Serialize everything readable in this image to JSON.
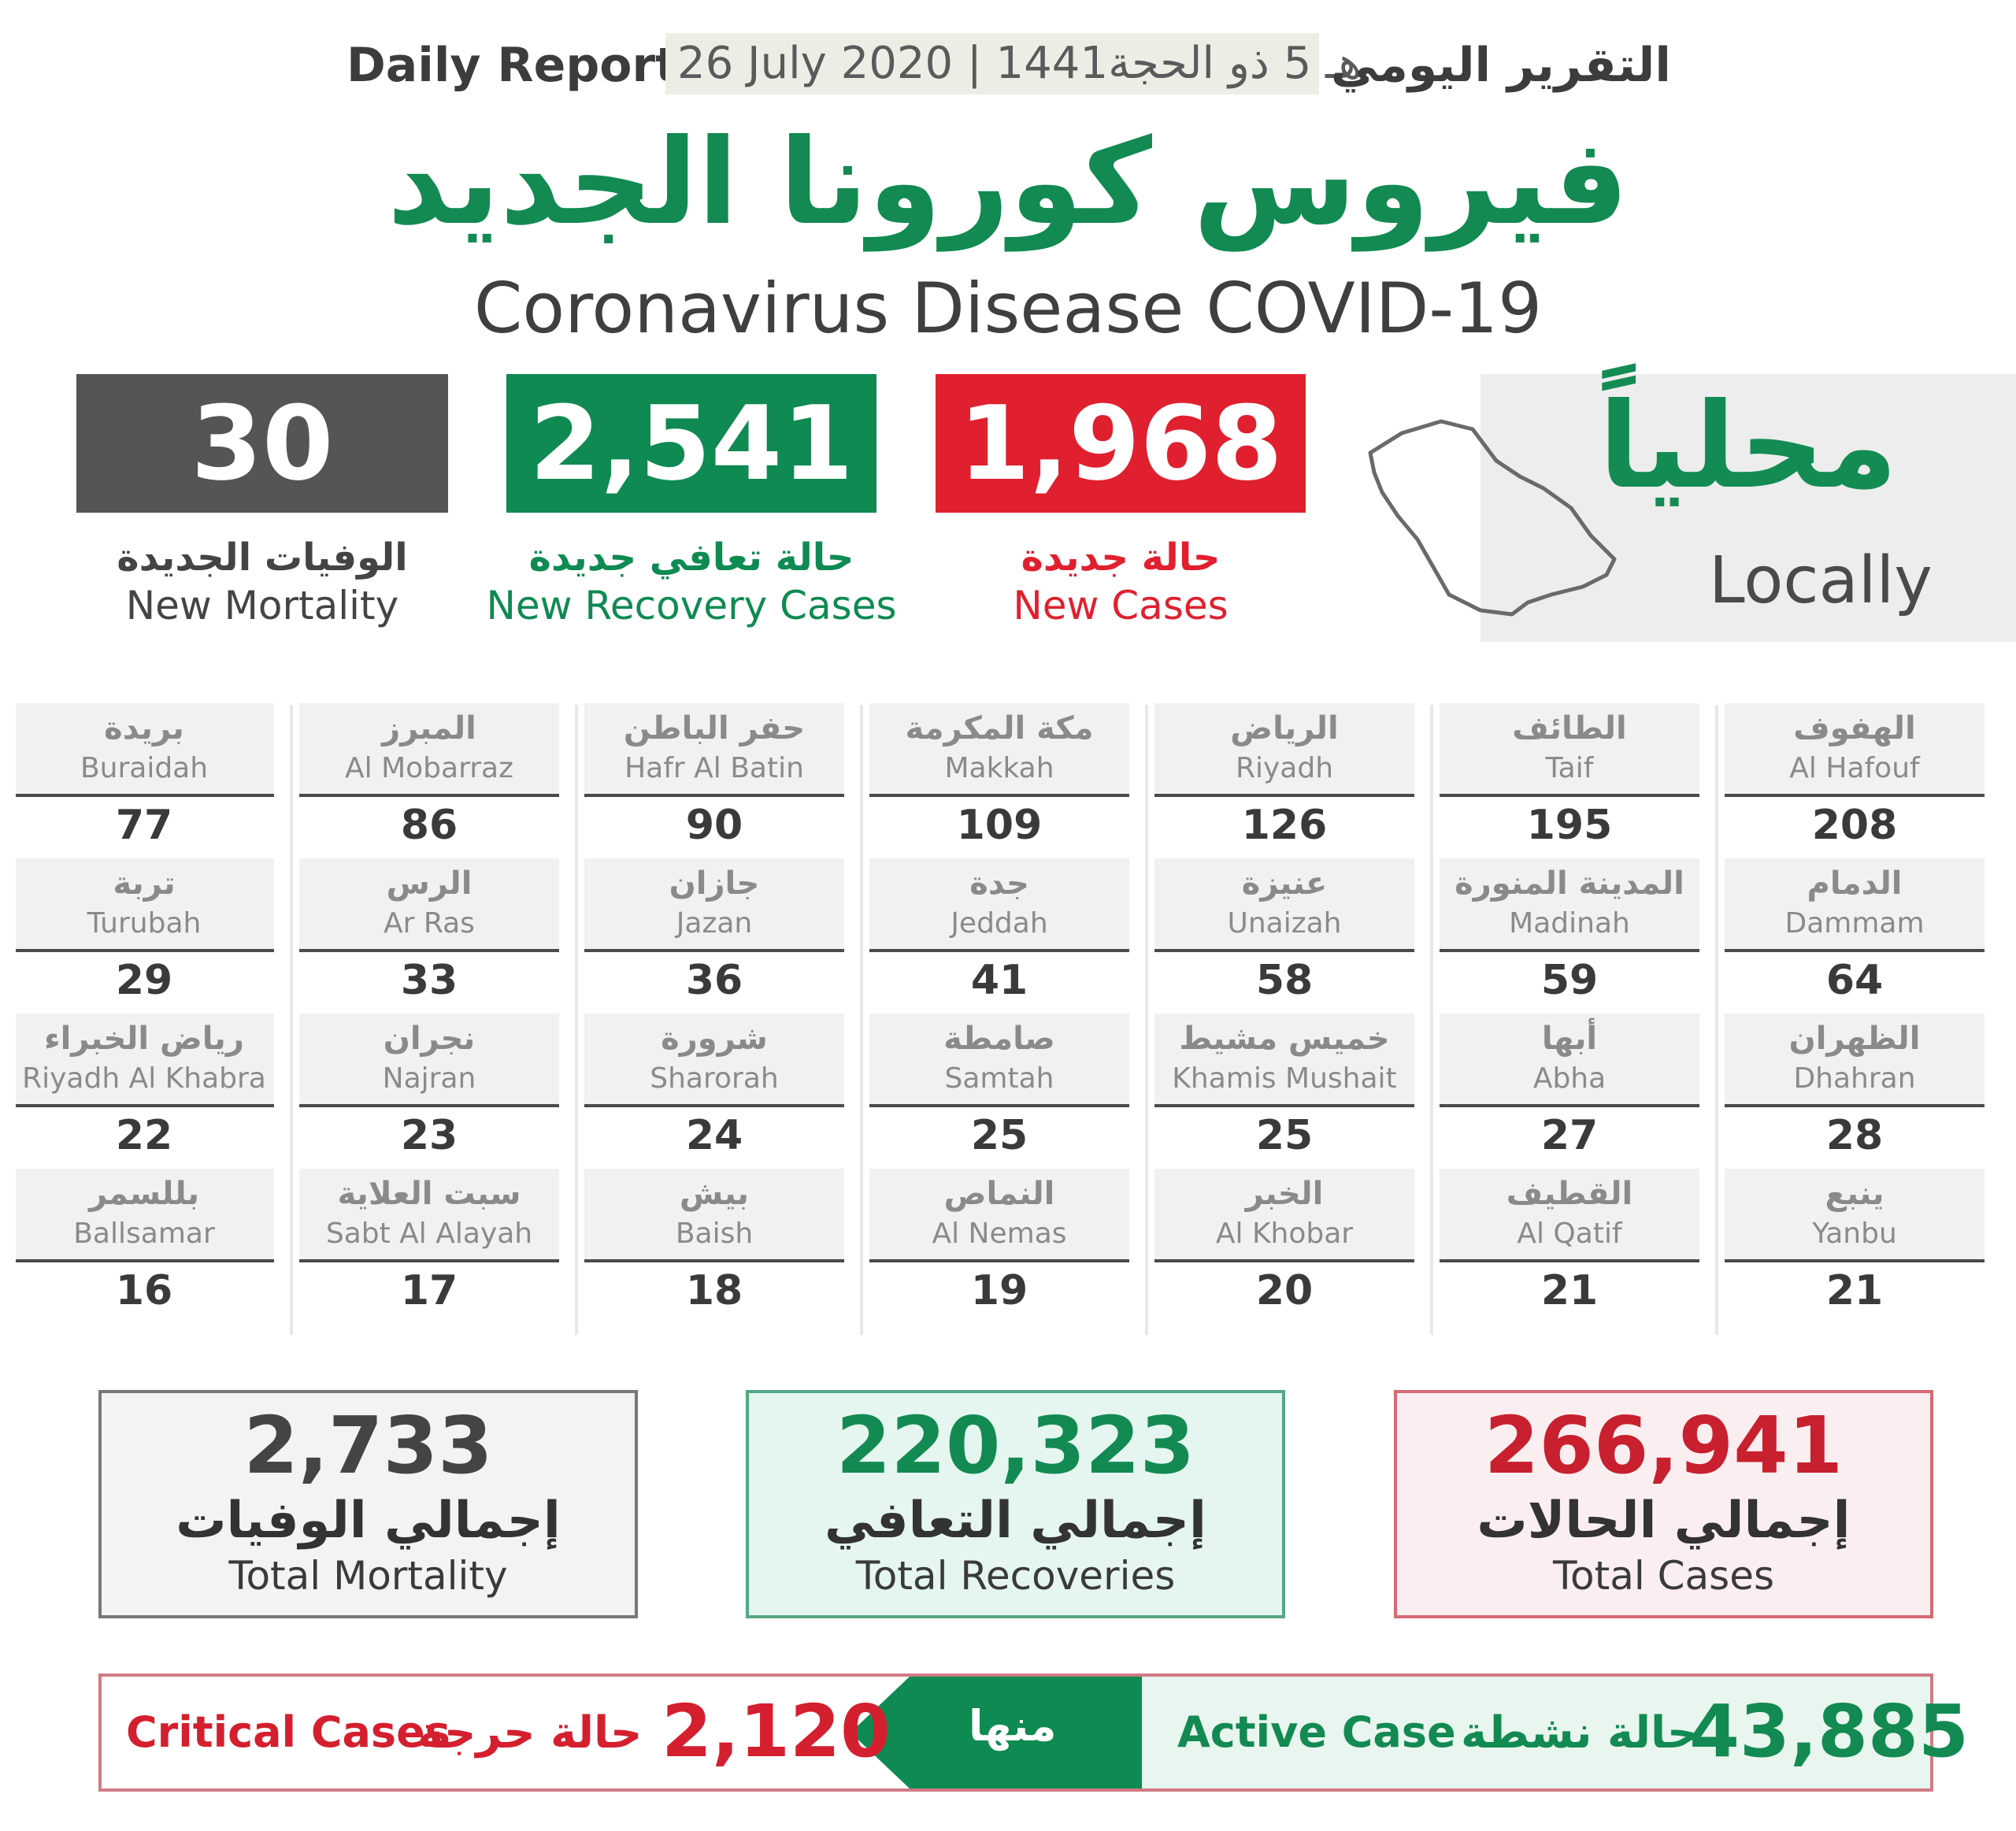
{
  "header": {
    "title_en": "Daily Report",
    "date": "26 July 2020 | 1441هـ 5 ذو الحجة",
    "title_ar": "التقرير اليومي"
  },
  "title": {
    "ar": "فيروس كورونا الجديد",
    "en": "Coronavirus Disease COVID-19"
  },
  "locally": {
    "ar": "محلياً",
    "en": "Locally"
  },
  "daily": {
    "new_cases": {
      "value": "1,968",
      "ar": "حالة جديدة",
      "en": "New Cases",
      "color": "#e0202f"
    },
    "new_recovery": {
      "value": "2,541",
      "ar": "حالة تعافي جديدة",
      "en": "New Recovery Cases",
      "color": "#0f8a52"
    },
    "new_mortality": {
      "value": "30",
      "ar": "الوفيات الجديدة",
      "en": "New Mortality",
      "color": "#555555"
    }
  },
  "cities": [
    [
      {
        "ar": "الهفوف",
        "en": "Al Hafouf",
        "value": "208"
      },
      {
        "ar": "الطائف",
        "en": "Taif",
        "value": "195"
      },
      {
        "ar": "الرياض",
        "en": "Riyadh",
        "value": "126"
      },
      {
        "ar": "مكة المكرمة",
        "en": "Makkah",
        "value": "109"
      },
      {
        "ar": "حفر الباطن",
        "en": "Hafr Al Batin",
        "value": "90"
      },
      {
        "ar": "المبرز",
        "en": "Al Mobarraz",
        "value": "86"
      },
      {
        "ar": "بريدة",
        "en": "Buraidah",
        "value": "77"
      }
    ],
    [
      {
        "ar": "الدمام",
        "en": "Dammam",
        "value": "64"
      },
      {
        "ar": "المدينة المنورة",
        "en": "Madinah",
        "value": "59"
      },
      {
        "ar": "عنيزة",
        "en": "Unaizah",
        "value": "58"
      },
      {
        "ar": "جدة",
        "en": "Jeddah",
        "value": "41"
      },
      {
        "ar": "جازان",
        "en": "Jazan",
        "value": "36"
      },
      {
        "ar": "الرس",
        "en": "Ar Ras",
        "value": "33"
      },
      {
        "ar": "تربة",
        "en": "Turubah",
        "value": "29"
      }
    ],
    [
      {
        "ar": "الظهران",
        "en": "Dhahran",
        "value": "28"
      },
      {
        "ar": "أبها",
        "en": "Abha",
        "value": "27"
      },
      {
        "ar": "خميس مشيط",
        "en": "Khamis Mushait",
        "value": "25"
      },
      {
        "ar": "صامطة",
        "en": "Samtah",
        "value": "25"
      },
      {
        "ar": "شرورة",
        "en": "Sharorah",
        "value": "24"
      },
      {
        "ar": "نجران",
        "en": "Najran",
        "value": "23"
      },
      {
        "ar": "رياض الخبراء",
        "en": "Riyadh Al Khabra",
        "value": "22"
      }
    ],
    [
      {
        "ar": "ينبع",
        "en": "Yanbu",
        "value": "21"
      },
      {
        "ar": "القطيف",
        "en": "Al Qatif",
        "value": "21"
      },
      {
        "ar": "الخبر",
        "en": "Al Khobar",
        "value": "20"
      },
      {
        "ar": "النماص",
        "en": "Al Nemas",
        "value": "19"
      },
      {
        "ar": "بيش",
        "en": "Baish",
        "value": "18"
      },
      {
        "ar": "سبت العلاية",
        "en": "Sabt Al Alayah",
        "value": "17"
      },
      {
        "ar": "بللسمر",
        "en": "Ballsamar",
        "value": "16"
      }
    ]
  ],
  "totals": {
    "mortality": {
      "value": "2,733",
      "ar": "إجمالي الوفيات",
      "en": "Total Mortality",
      "color": "#444444"
    },
    "recoveries": {
      "value": "220,323",
      "ar": "إجمالي التعافي",
      "en": "Total Recoveries",
      "color": "#128a52"
    },
    "cases": {
      "value": "266,941",
      "ar": "إجمالي الحالات",
      "en": "Total Cases",
      "color": "#c8202e"
    }
  },
  "active": {
    "value": "43,885",
    "ar": "حالة نشطة",
    "en": "Active Case",
    "of_which": "منها",
    "critical_value": "2,120",
    "critical_ar": "حالة حرجة",
    "critical_en": "Critical Cases"
  }
}
